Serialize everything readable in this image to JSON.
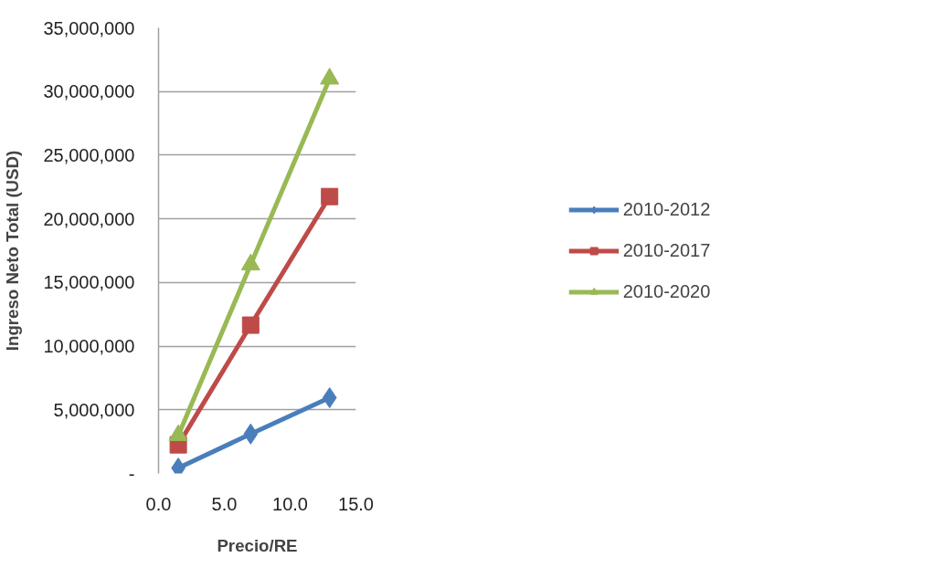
{
  "chart_data": {
    "type": "line",
    "xlabel": "Precio/RE",
    "ylabel": "Ingreso Neto Total (USD)",
    "x": [
      1.5,
      7,
      13
    ],
    "series": [
      {
        "name": "2010-2012",
        "color": "#4a7ebb",
        "marker": "diamond",
        "values": [
          430000,
          3100000,
          5950000
        ]
      },
      {
        "name": "2010-2017",
        "color": "#be4b48",
        "marker": "square",
        "values": [
          2250000,
          11650000,
          21750000
        ]
      },
      {
        "name": "2010-2020",
        "color": "#98b954",
        "marker": "triangle",
        "values": [
          3000000,
          16400000,
          31000000
        ]
      }
    ],
    "xlim": [
      0,
      15
    ],
    "xticks": [
      {
        "value": 0,
        "label": "0.0"
      },
      {
        "value": 5,
        "label": "5.0"
      },
      {
        "value": 10,
        "label": "10.0"
      },
      {
        "value": 15,
        "label": "15.0"
      }
    ],
    "ylim": [
      0,
      35000000
    ],
    "yticks": [
      {
        "value": 0,
        "label": "-"
      },
      {
        "value": 5000000,
        "label": "5,000,000"
      },
      {
        "value": 10000000,
        "label": "10,000,000"
      },
      {
        "value": 15000000,
        "label": "15,000,000"
      },
      {
        "value": 20000000,
        "label": "20,000,000"
      },
      {
        "value": 25000000,
        "label": "25,000,000"
      },
      {
        "value": 30000000,
        "label": "30,000,000"
      },
      {
        "value": 35000000,
        "label": "35,000,000"
      }
    ],
    "grid": "y",
    "legend": "right",
    "line_style": "solid"
  }
}
